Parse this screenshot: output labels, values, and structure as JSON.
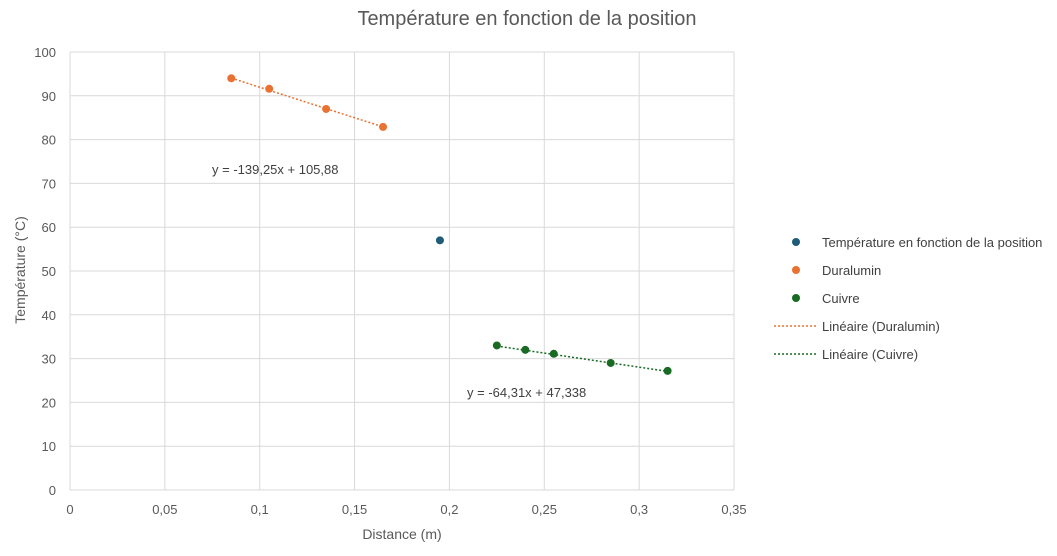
{
  "chart_data": {
    "type": "scatter",
    "title": "Température en fonction de la position",
    "xlabel": "Distance (m)",
    "ylabel": "Température (°C)",
    "xlim": [
      0,
      0.35
    ],
    "ylim": [
      0,
      100
    ],
    "x_ticks": [
      "0",
      "0,05",
      "0,1",
      "0,15",
      "0,2",
      "0,25",
      "0,3",
      "0,35"
    ],
    "y_ticks": [
      "0",
      "10",
      "20",
      "30",
      "40",
      "50",
      "60",
      "70",
      "80",
      "90",
      "100"
    ],
    "grid": true,
    "legend_position": "right",
    "series": [
      {
        "name": "Température en fonction de la position",
        "color": "#1f5c7a",
        "points": [
          {
            "x": 0.195,
            "y": 57
          }
        ]
      },
      {
        "name": "Duralumin",
        "color": "#e97132",
        "points": [
          {
            "x": 0.085,
            "y": 94
          },
          {
            "x": 0.105,
            "y": 91.6
          },
          {
            "x": 0.135,
            "y": 87
          },
          {
            "x": 0.165,
            "y": 82.9
          }
        ]
      },
      {
        "name": "Cuivre",
        "color": "#196b24",
        "points": [
          {
            "x": 0.225,
            "y": 33
          },
          {
            "x": 0.24,
            "y": 32
          },
          {
            "x": 0.255,
            "y": 31.1
          },
          {
            "x": 0.285,
            "y": 29
          },
          {
            "x": 0.315,
            "y": 27.2
          }
        ]
      }
    ],
    "trendlines": [
      {
        "name": "Linéaire (Duralumin)",
        "color": "#e97132",
        "slope": -139.25,
        "intercept": 105.88,
        "x_range": [
          0.085,
          0.165
        ],
        "equation": "y = -139,25x + 105,88"
      },
      {
        "name": "Linéaire (Cuivre)",
        "color": "#196b24",
        "slope": -64.31,
        "intercept": 47.338,
        "x_range": [
          0.225,
          0.315
        ],
        "equation": "y = -64,31x + 47,338"
      }
    ]
  }
}
